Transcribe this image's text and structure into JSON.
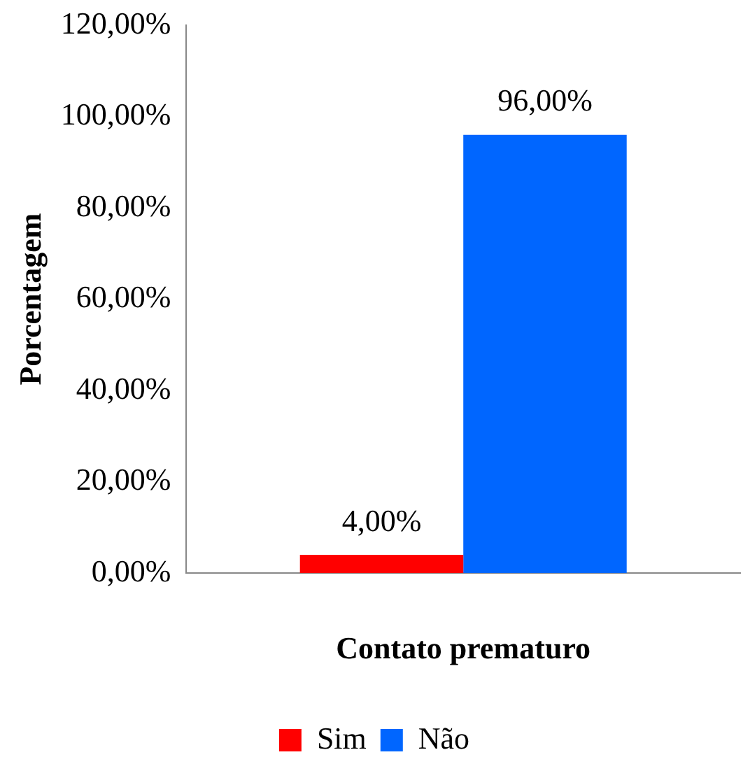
{
  "chart_data": {
    "type": "bar",
    "categories": [
      null
    ],
    "series": [
      {
        "name": "Sim",
        "color": "#ff0000",
        "values": [
          4
        ],
        "value_labels": [
          "4,00%"
        ]
      },
      {
        "name": "Não",
        "color": "#0066ff",
        "values": [
          96
        ],
        "value_labels": [
          "96,00%"
        ]
      }
    ],
    "xlabel": "Contato prematuro",
    "ylabel": "Porcentagem",
    "ylim": [
      0,
      120
    ],
    "yticks": [
      {
        "value": 0,
        "label": "0,00%"
      },
      {
        "value": 20,
        "label": "20,00%"
      },
      {
        "value": 40,
        "label": "40,00%"
      },
      {
        "value": 60,
        "label": "60,00%"
      },
      {
        "value": 80,
        "label": "80,00%"
      },
      {
        "value": 100,
        "label": "100,00%"
      },
      {
        "value": 120,
        "label": "120,00%"
      }
    ],
    "grid": false,
    "legend": "bottom"
  }
}
